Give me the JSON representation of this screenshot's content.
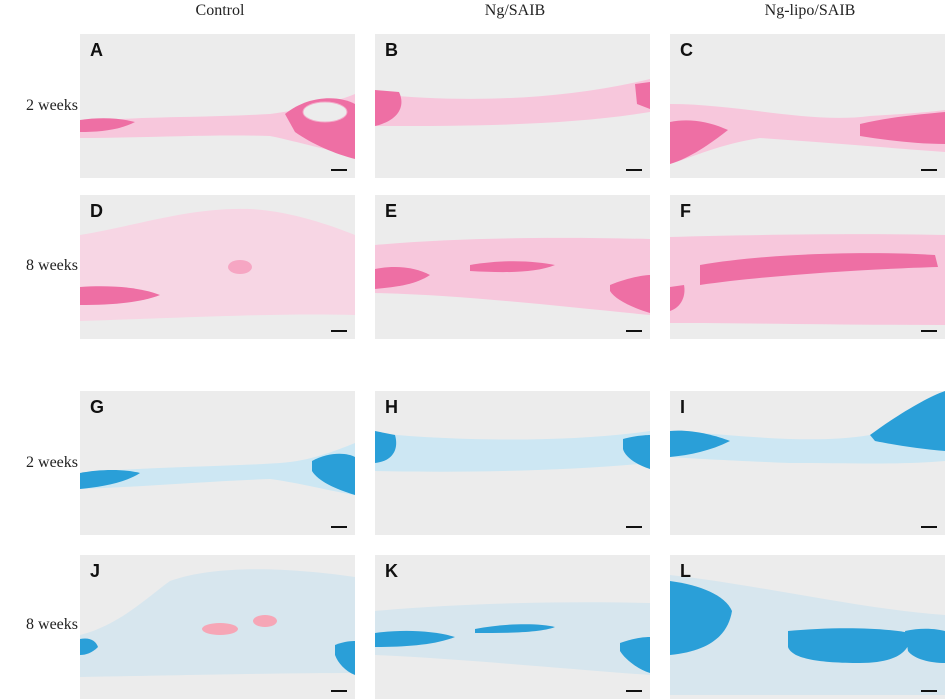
{
  "columns": [
    "Control",
    "Ng/SAIB",
    "Ng-lipo/SAIB"
  ],
  "rows": [
    "2 weeks",
    "8 weeks",
    "2 weeks",
    "8 weeks"
  ],
  "panels": [
    "A",
    "B",
    "C",
    "D",
    "E",
    "F",
    "G",
    "H",
    "I",
    "J",
    "K",
    "L"
  ],
  "stains": {
    "he_color": "#ee6fa4",
    "blue_color": "#2a9fd8"
  }
}
